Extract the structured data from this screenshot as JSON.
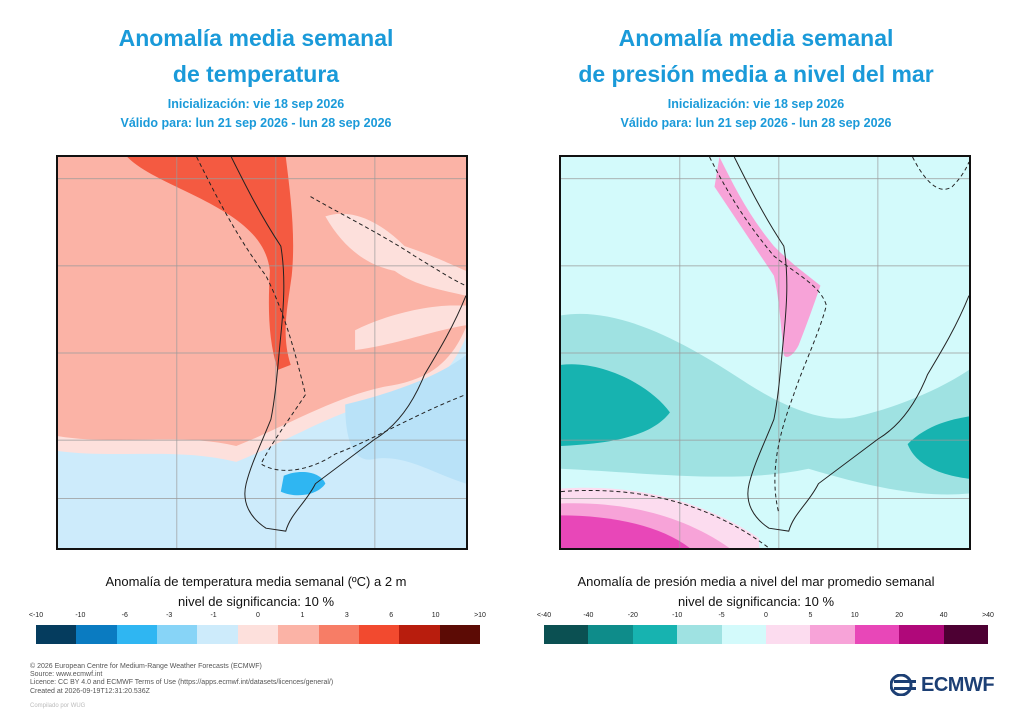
{
  "left": {
    "title_line1": "Anomalía media semanal",
    "title_line2": "de temperatura",
    "init": "Inicialización: vie 18 sep 2026",
    "valid": "Válido para: lun 21 sep 2026 - lun 28 sep 2026",
    "caption_line1": "Anomalía de temperatura media semanal (ºC) a 2 m",
    "caption_line2": "nivel de significancia: 10 %",
    "legend": {
      "ticks": [
        "<-10",
        "-10",
        "-6",
        "-3",
        "-1",
        "0",
        "1",
        "3",
        "6",
        "10",
        ">10"
      ],
      "colors": [
        "#053c5e",
        "#0a7bc1",
        "#2fb6f2",
        "#87d4f7",
        "#cdebfb",
        "#fde0dc",
        "#fbb3a6",
        "#f77d66",
        "#f24a2f",
        "#b81d0d",
        "#5c0b05"
      ]
    }
  },
  "right": {
    "title_line1": "Anomalía media semanal",
    "title_line2": "de presión media a nivel del mar",
    "init": "Inicialización: vie 18 sep 2026",
    "valid": "Válido para: lun 21 sep 2026 - lun 28 sep 2026",
    "caption_line1": "Anomalía de presión media a nivel del mar promedio semanal",
    "caption_line2": "nivel de significancia: 10 %",
    "legend": {
      "ticks": [
        "<-40",
        "-40",
        "-20",
        "-10",
        "-5",
        "0",
        "5",
        "10",
        "20",
        "40",
        ">40"
      ],
      "colors": [
        "#0b5052",
        "#0e8c8a",
        "#17b3b0",
        "#9fe2e2",
        "#d3fafb",
        "#fcdcef",
        "#f7a3d8",
        "#e847b8",
        "#b0087a",
        "#4d0033"
      ]
    }
  },
  "footer": {
    "line1": "© 2026 European Centre for Medium-Range Weather Forecasts (ECMWF)",
    "line2": "Source: www.ecmwf.int",
    "line3": "Licence: CC BY 4.0 and ECMWF Terms of Use (https://apps.ecmwf.int/datasets/licences/general/)",
    "line4": "Created at 2026-09-19T12:31:20.536Z",
    "compiled": "Compilado por WUG"
  },
  "logo": {
    "text": "ECMWF",
    "color": "#1c3f74"
  }
}
